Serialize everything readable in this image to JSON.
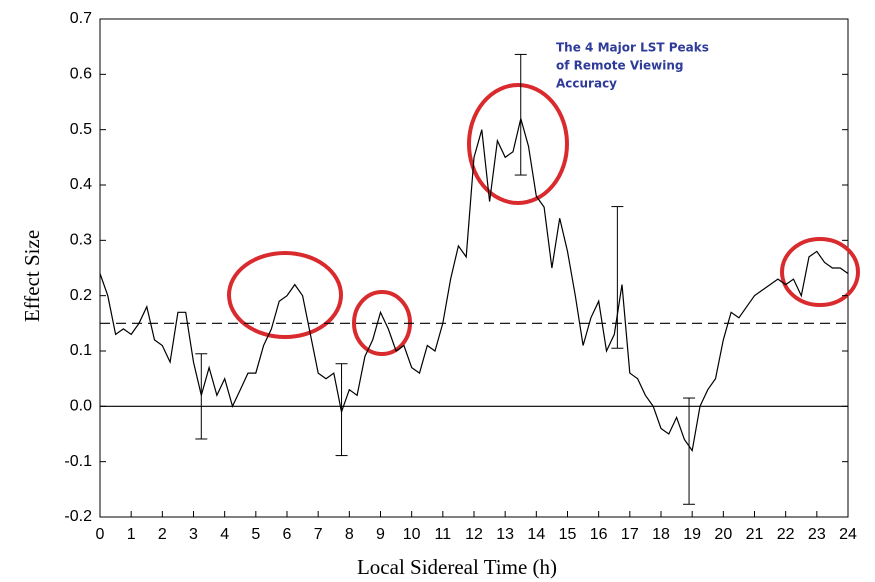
{
  "chart_data": {
    "type": "line",
    "xlabel": "Local Sidereal Time (h)",
    "ylabel": "Effect Size",
    "xlim": [
      0,
      24
    ],
    "ylim": [
      -0.2,
      0.7
    ],
    "xticks": [
      0,
      1,
      2,
      3,
      4,
      5,
      6,
      7,
      8,
      9,
      10,
      11,
      12,
      13,
      14,
      15,
      16,
      17,
      18,
      19,
      20,
      21,
      22,
      23,
      24
    ],
    "yticks": [
      -0.2,
      -0.1,
      {
        "value": 0,
        "label": "0.0"
      },
      0.1,
      0.2,
      0.3,
      0.4,
      0.5,
      0.6,
      0.7
    ],
    "x": [
      0,
      0.25,
      0.5,
      0.75,
      1,
      1.25,
      1.5,
      1.75,
      2,
      2.25,
      2.5,
      2.75,
      3,
      3.25,
      3.5,
      3.75,
      4,
      4.25,
      4.5,
      4.75,
      5,
      5.25,
      5.5,
      5.75,
      6,
      6.25,
      6.5,
      6.75,
      7,
      7.25,
      7.5,
      7.75,
      8,
      8.25,
      8.5,
      8.75,
      9,
      9.25,
      9.5,
      9.75,
      10,
      10.25,
      10.5,
      10.75,
      11,
      11.25,
      11.5,
      11.75,
      12,
      12.25,
      12.5,
      12.75,
      13,
      13.25,
      13.5,
      13.75,
      14,
      14.25,
      14.5,
      14.75,
      15,
      15.25,
      15.5,
      15.75,
      16,
      16.25,
      16.5,
      16.75,
      17,
      17.25,
      17.5,
      17.75,
      18,
      18.25,
      18.5,
      18.75,
      19,
      19.25,
      19.5,
      19.75,
      20,
      20.25,
      20.5,
      20.75,
      21,
      21.25,
      21.5,
      21.75,
      22,
      22.25,
      22.5,
      22.75,
      23,
      23.25,
      23.5,
      23.75,
      24
    ],
    "series": [
      {
        "color": "#000000",
        "values": [
          0.24,
          0.2,
          0.13,
          0.14,
          0.13,
          0.15,
          0.18,
          0.12,
          0.11,
          0.08,
          0.17,
          0.17,
          0.08,
          0.02,
          0.07,
          0.02,
          0.05,
          0.0,
          0.03,
          0.06,
          0.06,
          0.11,
          0.14,
          0.19,
          0.2,
          0.22,
          0.2,
          0.13,
          0.06,
          0.05,
          0.06,
          -0.01,
          0.03,
          0.02,
          0.09,
          0.12,
          0.17,
          0.14,
          0.1,
          0.11,
          0.07,
          0.06,
          0.11,
          0.1,
          0.15,
          0.23,
          0.29,
          0.27,
          0.45,
          0.5,
          0.37,
          0.48,
          0.45,
          0.46,
          0.52,
          0.47,
          0.38,
          0.36,
          0.25,
          0.34,
          0.28,
          0.2,
          0.11,
          0.16,
          0.19,
          0.1,
          0.13,
          0.22,
          0.06,
          0.05,
          0.02,
          0.0,
          -0.04,
          -0.05,
          -0.02,
          -0.06,
          -0.08,
          0.0,
          0.03,
          0.05,
          0.12,
          0.17,
          0.16,
          0.18,
          0.2,
          0.21,
          0.22,
          0.23,
          0.22,
          0.23,
          0.2,
          0.27,
          0.28,
          0.26,
          0.25,
          0.25,
          0.24
        ]
      }
    ],
    "error_bars": {
      "x": [
        3.25,
        7.75,
        13.5,
        16.6,
        18.9
      ],
      "values": [
        0.018,
        -0.006,
        0.527,
        0.233,
        -0.081
      ],
      "errors": [
        0.077,
        0.083,
        0.109,
        0.128,
        0.096
      ]
    },
    "hlines": [
      {
        "value": 0,
        "style": "solid"
      },
      {
        "value": 0.15,
        "style": "dashed"
      }
    ],
    "annotation": [
      "The 4 Major LST Peaks",
      "of Remote Viewing",
      "Accuracy"
    ]
  }
}
